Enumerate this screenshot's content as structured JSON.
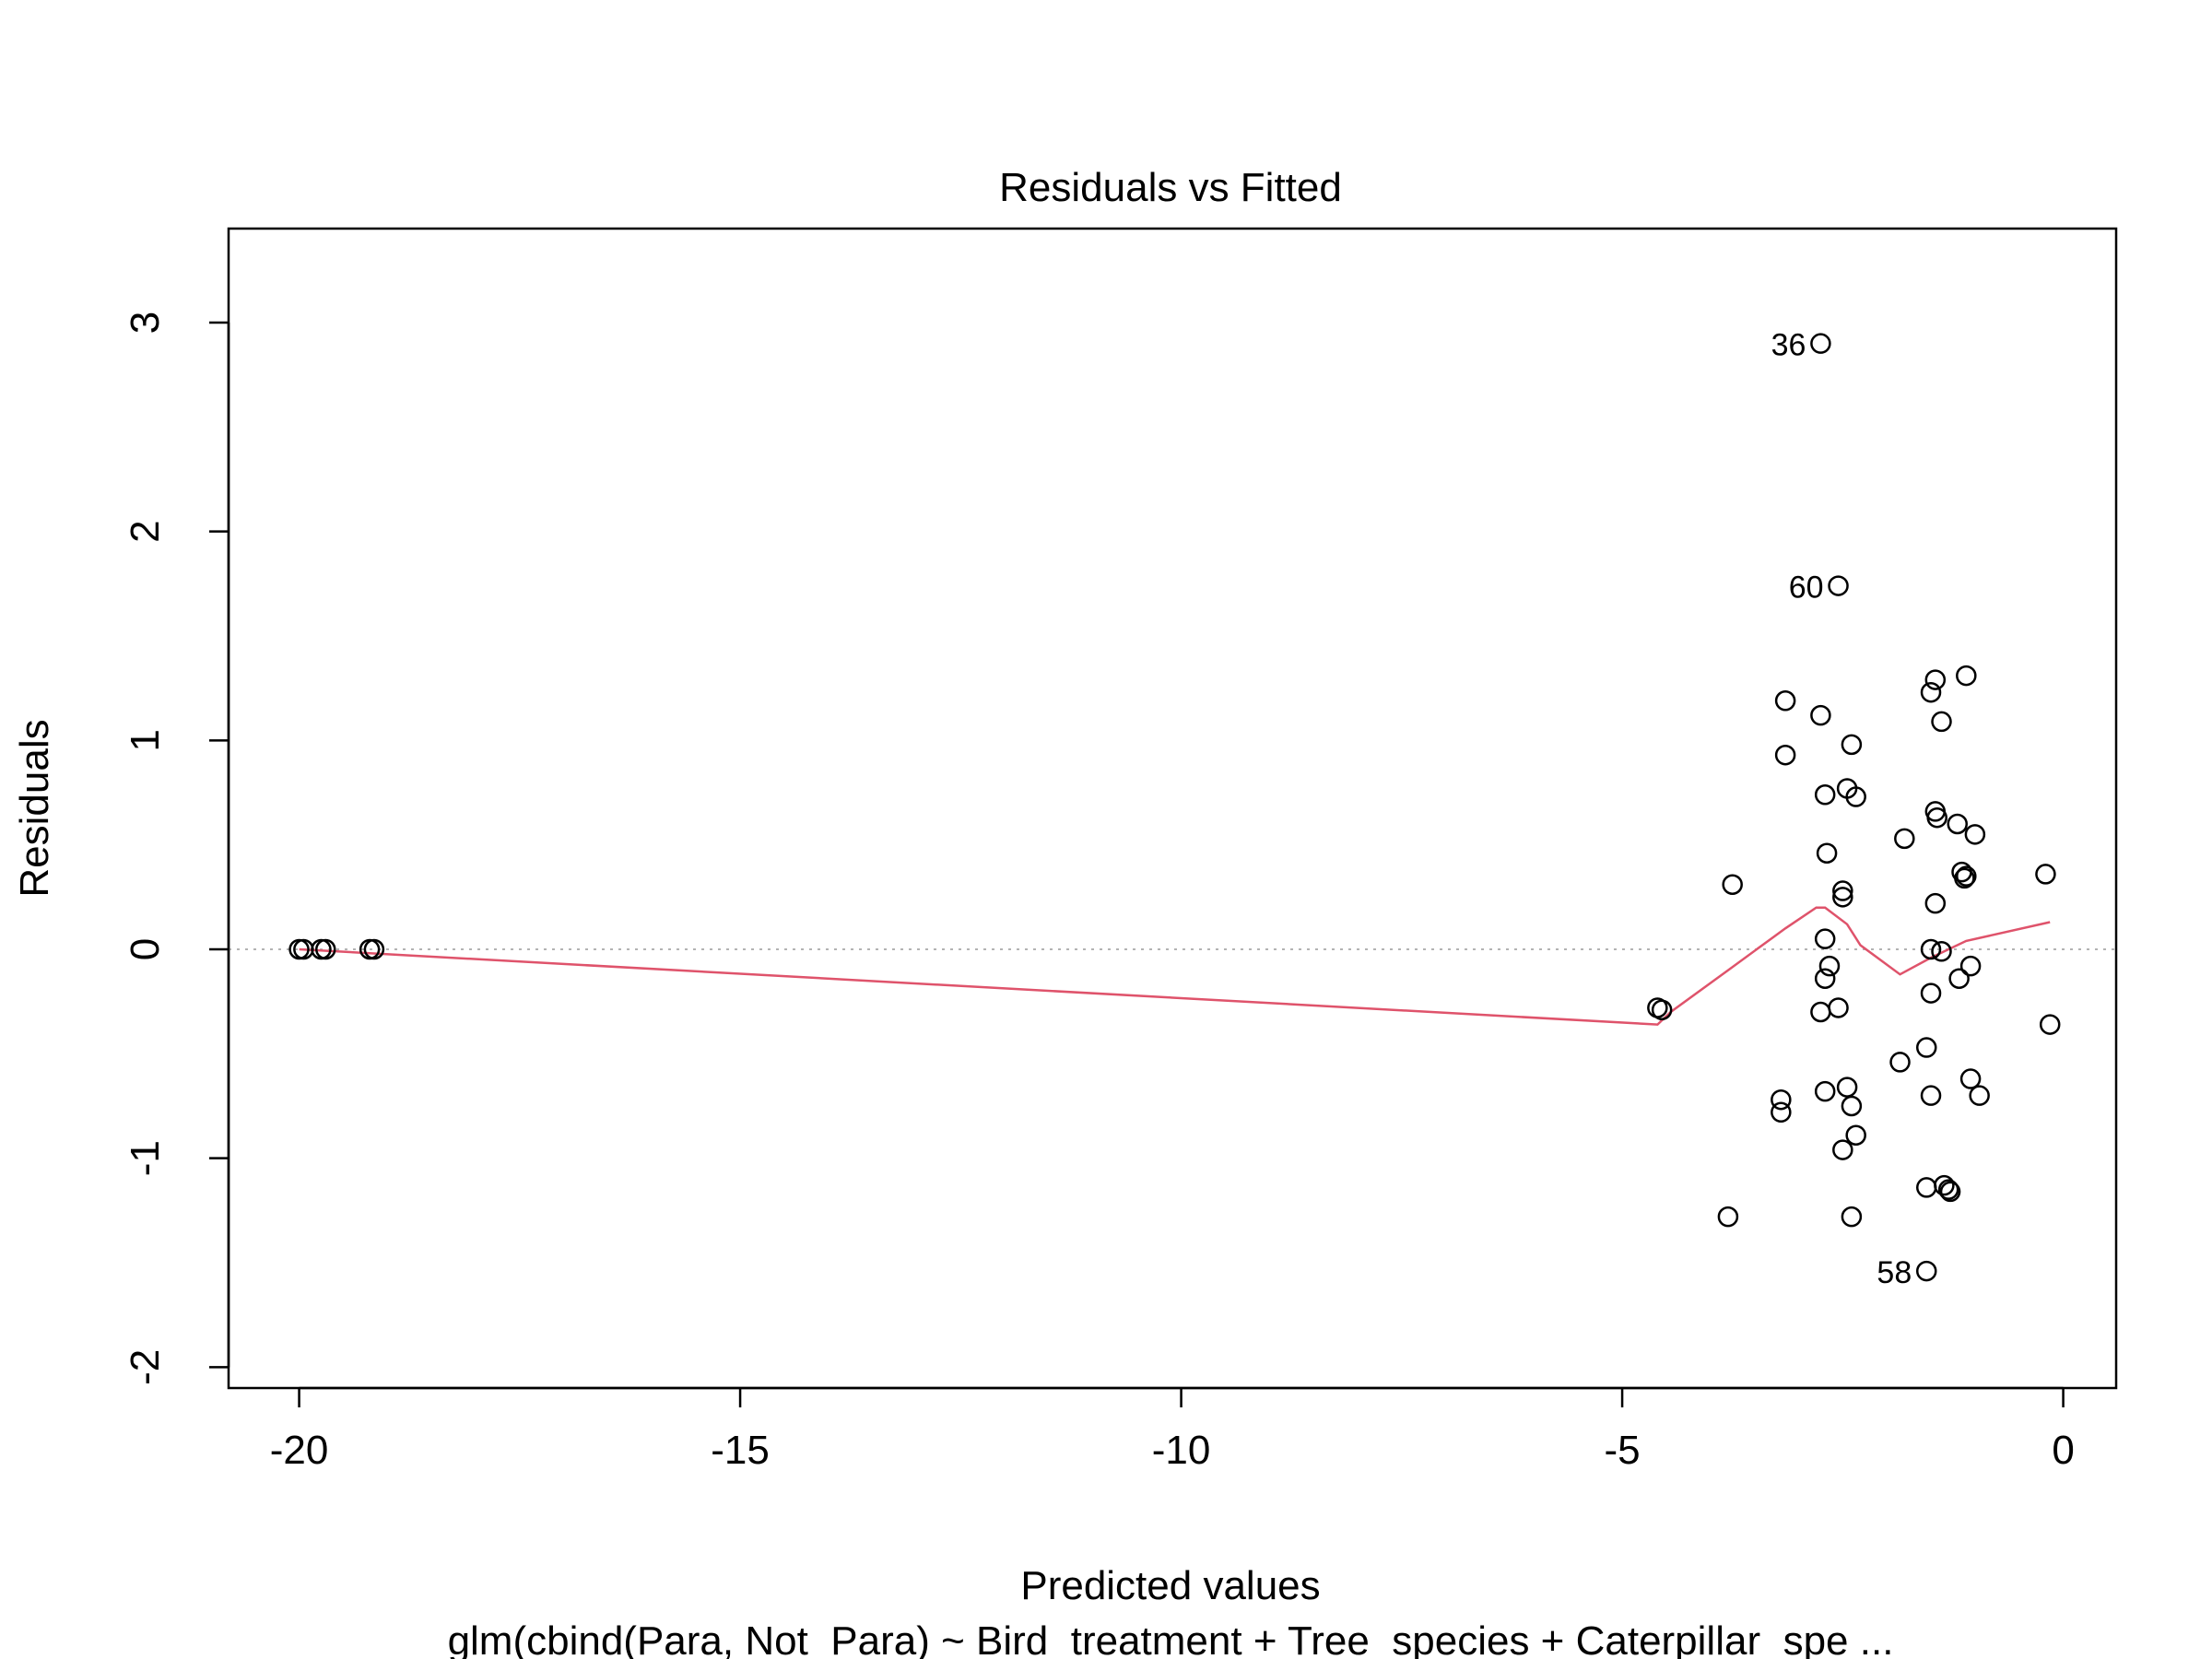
{
  "chart_data": {
    "type": "scatter",
    "title": "Residuals vs Fitted",
    "xlabel": "Predicted values",
    "ylabel": "Residuals",
    "subtitle": "glm(cbind(Para, Not_Para) ~ Bird_treatment + Tree_species + Caterpillar_spe ...",
    "xlim": [
      -20.8,
      0.6
    ],
    "ylim": [
      -2.1,
      3.45
    ],
    "x_ticks": [
      -20,
      -15,
      -10,
      -5,
      0
    ],
    "y_ticks": [
      -2,
      -1,
      0,
      1,
      2,
      3
    ],
    "grid": false,
    "reference_line": {
      "y": 0,
      "style": "dotted",
      "color": "#b3b3b3"
    },
    "point_color": "#000000",
    "smooth_color": "#df536b",
    "points": [
      {
        "x": -20.0,
        "y": 0.0
      },
      {
        "x": -19.95,
        "y": 0.0
      },
      {
        "x": -19.75,
        "y": 0.0
      },
      {
        "x": -19.7,
        "y": 0.0
      },
      {
        "x": -19.2,
        "y": 0.0
      },
      {
        "x": -19.15,
        "y": 0.0
      },
      {
        "x": -4.6,
        "y": -0.28
      },
      {
        "x": -4.55,
        "y": -0.29
      },
      {
        "x": -3.8,
        "y": -1.28
      },
      {
        "x": -3.75,
        "y": 0.31
      },
      {
        "x": -3.2,
        "y": -0.72
      },
      {
        "x": -3.2,
        "y": -0.78
      },
      {
        "x": -3.15,
        "y": 1.19
      },
      {
        "x": -3.15,
        "y": 0.93
      },
      {
        "x": -2.75,
        "y": 2.9,
        "label": "36"
      },
      {
        "x": -2.75,
        "y": 1.12
      },
      {
        "x": -2.7,
        "y": 0.74
      },
      {
        "x": -2.68,
        "y": 0.46
      },
      {
        "x": -2.7,
        "y": 0.05
      },
      {
        "x": -2.7,
        "y": -0.14
      },
      {
        "x": -2.65,
        "y": -0.08
      },
      {
        "x": -2.75,
        "y": -0.3
      },
      {
        "x": -2.7,
        "y": -0.68
      },
      {
        "x": -2.55,
        "y": 1.74,
        "label": "60"
      },
      {
        "x": -2.5,
        "y": 0.28
      },
      {
        "x": -2.5,
        "y": 0.25
      },
      {
        "x": -2.55,
        "y": -0.28
      },
      {
        "x": -2.5,
        "y": -0.96
      },
      {
        "x": -2.45,
        "y": 0.77
      },
      {
        "x": -2.45,
        "y": -0.66
      },
      {
        "x": -2.4,
        "y": 0.98
      },
      {
        "x": -2.35,
        "y": 0.73
      },
      {
        "x": -2.4,
        "y": -0.75
      },
      {
        "x": -2.35,
        "y": -0.89
      },
      {
        "x": -2.4,
        "y": -1.28
      },
      {
        "x": -1.8,
        "y": 0.53
      },
      {
        "x": -1.85,
        "y": -0.54
      },
      {
        "x": -1.55,
        "y": -1.54,
        "label": "58"
      },
      {
        "x": -1.55,
        "y": -0.47
      },
      {
        "x": -1.5,
        "y": -0.21
      },
      {
        "x": -1.5,
        "y": 0.0
      },
      {
        "x": -1.45,
        "y": 0.66
      },
      {
        "x": -1.43,
        "y": 0.63
      },
      {
        "x": -1.45,
        "y": 0.22
      },
      {
        "x": -1.5,
        "y": -0.7
      },
      {
        "x": -1.55,
        "y": -1.14
      },
      {
        "x": -1.5,
        "y": 1.23
      },
      {
        "x": -1.45,
        "y": 1.29
      },
      {
        "x": -1.38,
        "y": 1.09
      },
      {
        "x": -1.38,
        "y": -0.01
      },
      {
        "x": -1.35,
        "y": -1.13
      },
      {
        "x": -1.3,
        "y": -1.15
      },
      {
        "x": -1.28,
        "y": -1.16
      },
      {
        "x": -1.2,
        "y": 0.6
      },
      {
        "x": -1.18,
        "y": -0.14
      },
      {
        "x": -1.15,
        "y": 0.37
      },
      {
        "x": -1.12,
        "y": 0.34
      },
      {
        "x": -1.1,
        "y": 0.35
      },
      {
        "x": -1.1,
        "y": 1.31
      },
      {
        "x": -1.05,
        "y": -0.08
      },
      {
        "x": -1.05,
        "y": -0.62
      },
      {
        "x": -1.0,
        "y": 0.55
      },
      {
        "x": -0.95,
        "y": -0.7
      },
      {
        "x": -0.2,
        "y": 0.36
      },
      {
        "x": -0.15,
        "y": -0.36
      }
    ],
    "smooth_line": [
      {
        "x": -20.0,
        "y": 0.0
      },
      {
        "x": -4.6,
        "y": -0.36
      },
      {
        "x": -4.45,
        "y": -0.3
      },
      {
        "x": -3.8,
        "y": -0.1
      },
      {
        "x": -3.15,
        "y": 0.1
      },
      {
        "x": -2.8,
        "y": 0.2
      },
      {
        "x": -2.7,
        "y": 0.2
      },
      {
        "x": -2.45,
        "y": 0.12
      },
      {
        "x": -2.3,
        "y": 0.02
      },
      {
        "x": -1.85,
        "y": -0.12
      },
      {
        "x": -1.5,
        "y": -0.04
      },
      {
        "x": -1.1,
        "y": 0.04
      },
      {
        "x": -0.15,
        "y": 0.13
      }
    ]
  }
}
